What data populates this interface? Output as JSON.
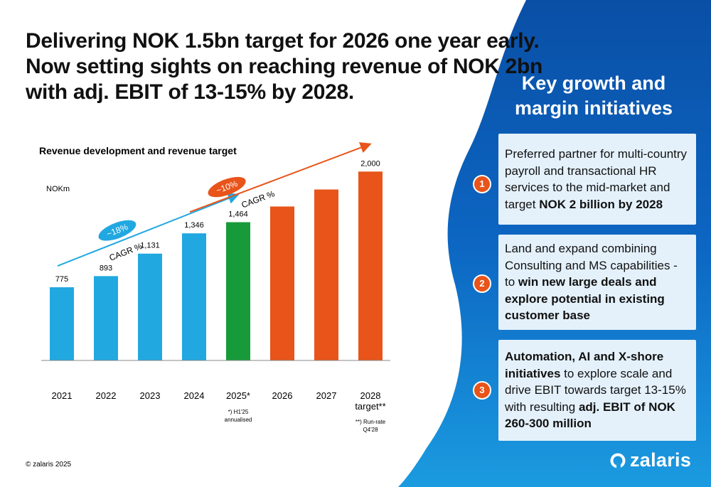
{
  "headline": [
    "Delivering NOK 1.5bn target for 2026 one year early.",
    "Now setting sights on reaching revenue of NOK 2bn",
    "with adj. EBIT of 13-15% by 2028."
  ],
  "colors": {
    "blue": "#21a8e1",
    "green": "#179b3a",
    "orange": "#e8541a",
    "panel_blue": "#0c5bb0",
    "card_bg": "#e4f1fb"
  },
  "chart_data": {
    "type": "bar",
    "title": "Revenue development and revenue target",
    "unit_label": "NOKm",
    "categories": [
      "2021",
      "2022",
      "2023",
      "2024",
      "2025*",
      "2026",
      "2027",
      "2028\ntarget**"
    ],
    "values": [
      775,
      893,
      1131,
      1346,
      1464,
      null,
      null,
      2000
    ],
    "target_path_values": [
      null,
      null,
      null,
      null,
      null,
      1630,
      1810,
      null
    ],
    "data_labels": [
      "775",
      "893",
      "1,131",
      "1,346",
      "1,464",
      "",
      "",
      "2,000"
    ],
    "bar_colors": [
      "blue",
      "blue",
      "blue",
      "blue",
      "green",
      "orange",
      "orange",
      "orange"
    ],
    "ylim": [
      0,
      2050
    ],
    "annotations": [
      {
        "bubble": "~18%",
        "label": "CAGR %",
        "color": "blue",
        "from": "2021",
        "to": "2025*"
      },
      {
        "bubble": "~10%",
        "label": "CAGR %",
        "color": "orange",
        "from": "2024",
        "to": "2028\ntarget**"
      }
    ],
    "footnotes": [
      {
        "category": "2025*",
        "lines": [
          "*) H1'25",
          "annualised"
        ]
      },
      {
        "category": "2028\ntarget**",
        "lines": [
          "**) Run-rate",
          "Q4'28"
        ]
      }
    ]
  },
  "panel": {
    "title_lines": [
      "Key growth and",
      "margin initiatives"
    ],
    "items": [
      {
        "number": "1",
        "parts": [
          {
            "text": "Preferred partner for multi-country payroll and transactional HR services to the mid-market and target ",
            "bold": false
          },
          {
            "text": "NOK 2 billion by 2028",
            "bold": true
          }
        ]
      },
      {
        "number": "2",
        "parts": [
          {
            "text": "Land and expand combining Consulting and MS capabilities - to ",
            "bold": false
          },
          {
            "text": "win new large deals and explore potential in existing customer base",
            "bold": true
          }
        ]
      },
      {
        "number": "3",
        "parts": [
          {
            "text": "Automation, AI and X-shore initiatives",
            "bold": true
          },
          {
            "text": " to explore scale and drive EBIT towards target 13-15% with resulting ",
            "bold": false
          },
          {
            "text": "adj. EBIT of NOK 260-300 million",
            "bold": true
          }
        ]
      }
    ]
  },
  "copyright": "© zalaris 2025",
  "logo_text": "zalaris"
}
